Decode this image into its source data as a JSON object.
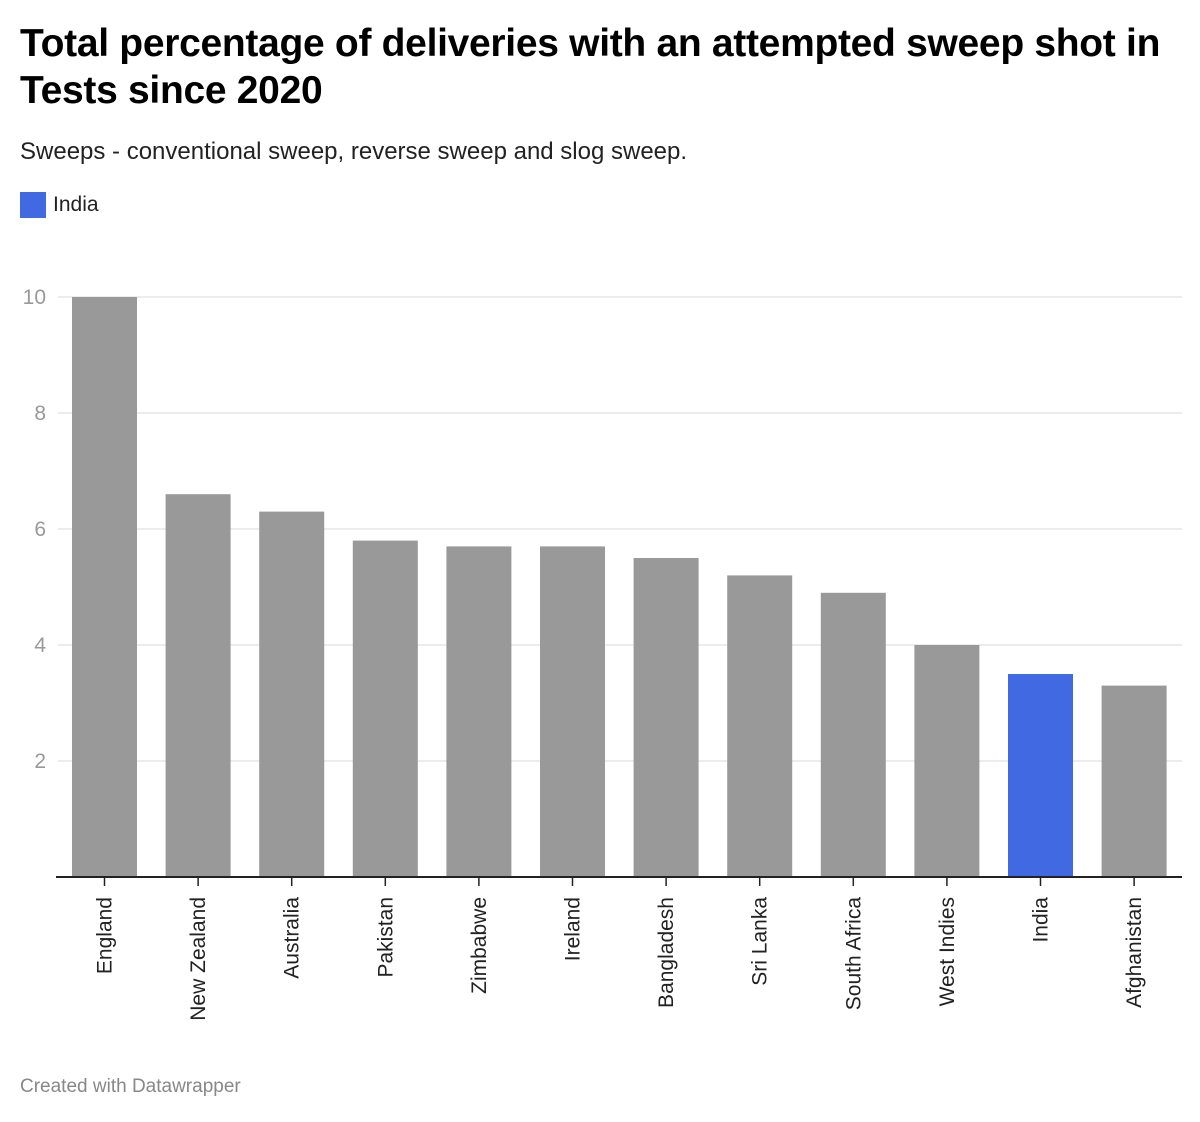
{
  "header": {
    "title": "Total percentage of deliveries with an attempted sweep shot in Tests since 2020",
    "subtitle": "Sweeps - conventional sweep, reverse sweep and slog sweep."
  },
  "legend": [
    {
      "label": "India",
      "color": "#4169e1"
    }
  ],
  "footer": {
    "credit": "Created with Datawrapper"
  },
  "colors": {
    "default_bar": "#999999",
    "highlight_bar": "#4169e1",
    "gridline": "#e5e5e5",
    "axis": "#222222",
    "tick_label": "#999999"
  },
  "chart_data": {
    "type": "bar",
    "title": "Total percentage of deliveries with an attempted sweep shot in Tests since 2020",
    "subtitle": "Sweeps - conventional sweep, reverse sweep and slog sweep.",
    "xlabel": "",
    "ylabel": "",
    "categories": [
      "England",
      "New Zealand",
      "Australia",
      "Pakistan",
      "Zimbabwe",
      "Ireland",
      "Bangladesh",
      "Sri Lanka",
      "South Africa",
      "West Indies",
      "India",
      "Afghanistan"
    ],
    "values": [
      10.0,
      6.6,
      6.3,
      5.8,
      5.7,
      5.7,
      5.5,
      5.2,
      4.9,
      4.0,
      3.5,
      3.3
    ],
    "highlight": [
      "India"
    ],
    "ylim": [
      0,
      10
    ],
    "yticks": [
      2,
      4,
      6,
      8,
      10
    ],
    "grid": true,
    "legend_position": "top-left",
    "x_label_rotation": "vertical"
  }
}
